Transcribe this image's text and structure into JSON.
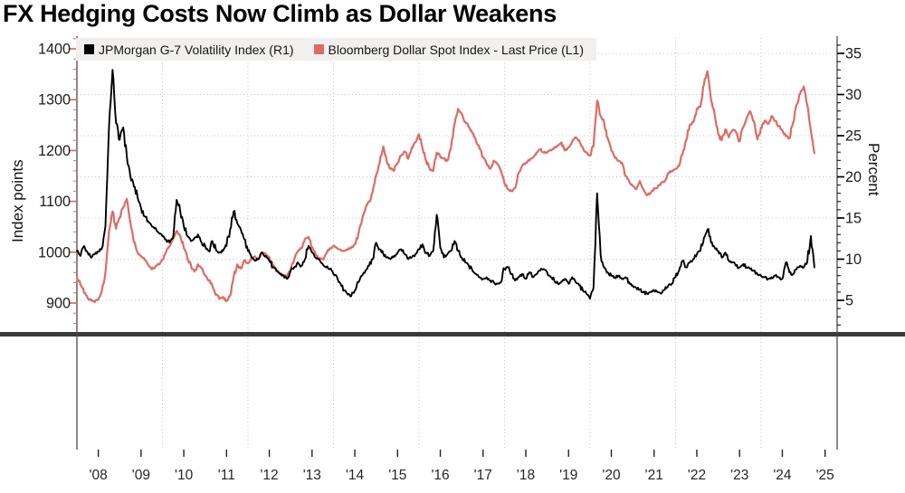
{
  "title": "FX Hedging Costs Now Climb as Dollar Weakens",
  "chart_data": {
    "type": "line",
    "title": "FX Hedging Costs Now Climb as Dollar Weakens",
    "frequency": "monthly",
    "x_start": "2008-01",
    "x_end": "2025-04",
    "x_tick_labels": [
      "'08",
      "'09",
      "'10",
      "'11",
      "'12",
      "'13",
      "'14",
      "'15",
      "'16",
      "'17",
      "'18",
      "'19",
      "'20",
      "'21",
      "'22",
      "'23",
      "'24",
      "'25"
    ],
    "left_axis": {
      "label": "Index points",
      "ticks": [
        900,
        1000,
        1100,
        1200,
        1300,
        1400
      ],
      "range": [
        840,
        1425
      ]
    },
    "right_axis": {
      "label": "Percent",
      "ticks": [
        5,
        10,
        15,
        20,
        25,
        30,
        35
      ],
      "range": [
        1,
        37
      ]
    },
    "gridlines": {
      "horizontal": "right-axis-majors",
      "vertical": "january-of-even-years",
      "style": "dotted"
    },
    "legend_position": "top-left-inside",
    "series": [
      {
        "name": "JPMorgan G-7 Volatility Index (R1)",
        "axis": "right",
        "color": "#000000",
        "values": [
          11.0,
          10.4,
          11.6,
          10.8,
          10.2,
          10.6,
          10.9,
          11.3,
          14.0,
          26.0,
          33.0,
          26.5,
          24.5,
          26.0,
          22.5,
          20.0,
          18.8,
          17.6,
          16.2,
          15.2,
          14.6,
          14.0,
          13.8,
          13.2,
          12.8,
          12.4,
          12.0,
          12.6,
          17.2,
          15.8,
          14.0,
          12.8,
          12.2,
          12.6,
          13.0,
          12.0,
          11.6,
          11.0,
          12.2,
          11.2,
          10.8,
          11.0,
          11.6,
          13.6,
          15.8,
          14.4,
          13.6,
          12.4,
          11.0,
          10.2,
          9.8,
          10.0,
          10.8,
          10.4,
          9.8,
          9.0,
          8.6,
          8.2,
          8.0,
          7.6,
          8.6,
          9.0,
          9.6,
          9.2,
          10.0,
          11.6,
          10.8,
          10.2,
          10.0,
          9.4,
          9.0,
          8.8,
          8.2,
          7.8,
          7.0,
          6.2,
          5.7,
          5.5,
          6.2,
          7.2,
          8.0,
          8.6,
          9.2,
          10.0,
          12.0,
          11.2,
          10.6,
          10.2,
          10.0,
          10.4,
          10.8,
          11.2,
          10.6,
          10.0,
          10.2,
          10.6,
          11.2,
          11.8,
          10.8,
          10.4,
          11.0,
          15.4,
          11.4,
          10.2,
          10.6,
          11.0,
          12.2,
          11.0,
          10.2,
          9.6,
          9.2,
          8.6,
          8.2,
          7.8,
          7.6,
          7.8,
          7.4,
          7.2,
          7.0,
          7.2,
          8.8,
          9.0,
          8.2,
          7.4,
          7.8,
          8.2,
          7.6,
          8.4,
          7.8,
          8.2,
          8.6,
          8.8,
          8.4,
          7.8,
          7.4,
          7.0,
          7.3,
          7.6,
          7.0,
          7.8,
          7.2,
          6.8,
          6.2,
          5.8,
          5.2,
          6.5,
          18.0,
          10.5,
          9.0,
          8.4,
          8.0,
          7.8,
          8.0,
          7.6,
          7.8,
          7.2,
          6.8,
          6.5,
          6.3,
          6.0,
          5.8,
          6.0,
          6.2,
          6.0,
          5.8,
          6.3,
          6.8,
          7.0,
          7.8,
          8.6,
          9.8,
          9.0,
          9.6,
          10.0,
          10.6,
          11.0,
          12.6,
          13.6,
          12.0,
          11.4,
          11.0,
          10.2,
          10.8,
          9.8,
          9.6,
          9.2,
          9.0,
          9.4,
          9.0,
          8.8,
          8.6,
          8.2,
          8.0,
          7.8,
          7.6,
          7.8,
          8.0,
          7.8,
          7.6,
          9.6,
          8.4,
          8.2,
          8.8,
          9.2,
          9.0,
          9.6,
          12.8,
          9.0
        ]
      },
      {
        "name": "Bloomberg Dollar Spot Index - Last Price (L1)",
        "axis": "left",
        "color": "#dd6b66",
        "values": [
          950,
          936,
          920,
          910,
          905,
          902,
          907,
          924,
          960,
          1040,
          1080,
          1046,
          1068,
          1088,
          1105,
          1058,
          1020,
          1000,
          992,
          985,
          975,
          966,
          972,
          976,
          986,
          1000,
          1012,
          1026,
          1042,
          1032,
          1008,
          988,
          974,
          962,
          976,
          968,
          954,
          944,
          934,
          916,
          908,
          912,
          904,
          914,
          952,
          976,
          968,
          984,
          978,
          986,
          992,
          988,
          1000,
          996,
          990,
          976,
          962,
          958,
          954,
          952,
          966,
          986,
          1002,
          1008,
          1026,
          1030,
          1010,
          996,
          988,
          986,
          998,
          1008,
          1012,
          1008,
          1005,
          1003,
          1005,
          1008,
          1016,
          1036,
          1062,
          1086,
          1100,
          1118,
          1152,
          1176,
          1208,
          1178,
          1164,
          1160,
          1176,
          1190,
          1198,
          1184,
          1206,
          1216,
          1232,
          1204,
          1180,
          1164,
          1160,
          1196,
          1188,
          1184,
          1180,
          1206,
          1252,
          1282,
          1272,
          1256,
          1246,
          1234,
          1220,
          1204,
          1186,
          1174,
          1164,
          1180,
          1174,
          1160,
          1136,
          1124,
          1120,
          1126,
          1156,
          1170,
          1176,
          1180,
          1186,
          1196,
          1202,
          1196,
          1196,
          1200,
          1206,
          1210,
          1216,
          1200,
          1206,
          1218,
          1226,
          1220,
          1206,
          1196,
          1190,
          1208,
          1298,
          1268,
          1254,
          1224,
          1200,
          1186,
          1180,
          1176,
          1150,
          1140,
          1130,
          1124,
          1140,
          1124,
          1112,
          1116,
          1126,
          1128,
          1136,
          1140,
          1156,
          1160,
          1164,
          1170,
          1192,
          1220,
          1250,
          1256,
          1282,
          1286,
          1330,
          1356,
          1300,
          1270,
          1232,
          1220,
          1242,
          1226,
          1240,
          1236,
          1218,
          1246,
          1264,
          1277,
          1258,
          1222,
          1245,
          1258,
          1252,
          1268,
          1258,
          1248,
          1240,
          1228,
          1224,
          1255,
          1290,
          1312,
          1326,
          1290,
          1240,
          1195
        ]
      }
    ]
  }
}
